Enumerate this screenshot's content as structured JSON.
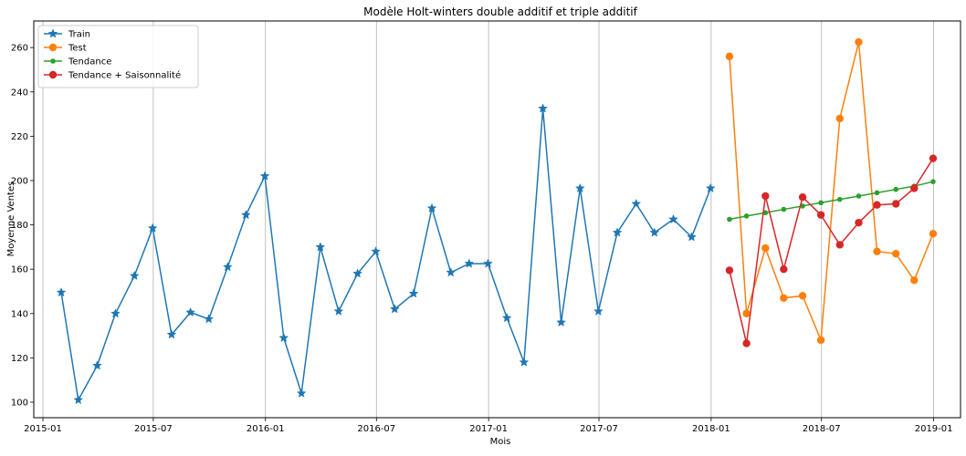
{
  "chart_data": {
    "type": "line",
    "title": "Modèle Holt-winters double additif et triple additif",
    "xlabel": "Mois",
    "ylabel": "Moyenne Ventes",
    "xlim": [
      "2014-12-17",
      "2019-02-14"
    ],
    "ylim": [
      93,
      272
    ],
    "x_ticks": [
      {
        "date": "2015-01-01",
        "label": "2015-01"
      },
      {
        "date": "2015-07-01",
        "label": "2015-07"
      },
      {
        "date": "2016-01-01",
        "label": "2016-01"
      },
      {
        "date": "2016-07-01",
        "label": "2016-07"
      },
      {
        "date": "2017-01-01",
        "label": "2017-01"
      },
      {
        "date": "2017-07-01",
        "label": "2017-07"
      },
      {
        "date": "2018-01-01",
        "label": "2018-01"
      },
      {
        "date": "2018-07-01",
        "label": "2018-07"
      },
      {
        "date": "2019-01-01",
        "label": "2019-01"
      }
    ],
    "y_ticks": [
      100,
      120,
      140,
      160,
      180,
      200,
      220,
      240,
      260
    ],
    "grid": "vertical",
    "legend_position": "top-left",
    "series": [
      {
        "name": "Train",
        "color": "#1f77b4",
        "marker": "star",
        "x": [
          "2015-01-31",
          "2015-02-28",
          "2015-03-31",
          "2015-04-30",
          "2015-05-31",
          "2015-06-30",
          "2015-07-31",
          "2015-08-31",
          "2015-09-30",
          "2015-10-31",
          "2015-11-30",
          "2015-12-31",
          "2016-01-31",
          "2016-02-29",
          "2016-03-31",
          "2016-04-30",
          "2016-05-31",
          "2016-06-30",
          "2016-07-31",
          "2016-08-31",
          "2016-09-30",
          "2016-10-31",
          "2016-11-30",
          "2016-12-31",
          "2017-01-31",
          "2017-02-28",
          "2017-03-31",
          "2017-04-30",
          "2017-05-31",
          "2017-06-30",
          "2017-07-31",
          "2017-08-31",
          "2017-09-30",
          "2017-10-31",
          "2017-11-30",
          "2017-12-31"
        ],
        "values": [
          149.5,
          101,
          116.5,
          140,
          157,
          178.5,
          130.5,
          140.5,
          137.5,
          161,
          184.5,
          202,
          129,
          104,
          170,
          141,
          158,
          168,
          142,
          149,
          187.5,
          158.5,
          162.5,
          162.5,
          138,
          118,
          232.5,
          136,
          196.5,
          141,
          176.5,
          189.5,
          176.5,
          182.5,
          174.5,
          196.5
        ]
      },
      {
        "name": "Test",
        "color": "#ff7f0e",
        "marker": "circle",
        "x": [
          "2018-01-31",
          "2018-02-28",
          "2018-03-31",
          "2018-04-30",
          "2018-05-31",
          "2018-06-30",
          "2018-07-31",
          "2018-08-31",
          "2018-09-30",
          "2018-10-31",
          "2018-11-30",
          "2018-12-31"
        ],
        "values": [
          256,
          140,
          169.5,
          147,
          148,
          128,
          228,
          262.5,
          168,
          167,
          155,
          176
        ]
      },
      {
        "name": "Tendance",
        "color": "#2ca02c",
        "marker": "small-circle",
        "x": [
          "2018-01-31",
          "2018-02-28",
          "2018-03-31",
          "2018-04-30",
          "2018-05-31",
          "2018-06-30",
          "2018-07-31",
          "2018-08-31",
          "2018-09-30",
          "2018-10-31",
          "2018-11-30",
          "2018-12-31"
        ],
        "values": [
          182.5,
          184,
          185.5,
          187,
          188.5,
          190,
          191.5,
          193,
          194.5,
          196,
          197.5,
          199.5
        ]
      },
      {
        "name": "Tendance + Saisonnalité",
        "color": "#d62728",
        "marker": "circle",
        "x": [
          "2018-01-31",
          "2018-02-28",
          "2018-03-31",
          "2018-04-30",
          "2018-05-31",
          "2018-06-30",
          "2018-07-31",
          "2018-08-31",
          "2018-09-30",
          "2018-10-31",
          "2018-11-30",
          "2018-12-31"
        ],
        "values": [
          159.5,
          126.5,
          193,
          160,
          192.5,
          184.5,
          171,
          181,
          189,
          189.5,
          196.5,
          210
        ]
      }
    ]
  }
}
